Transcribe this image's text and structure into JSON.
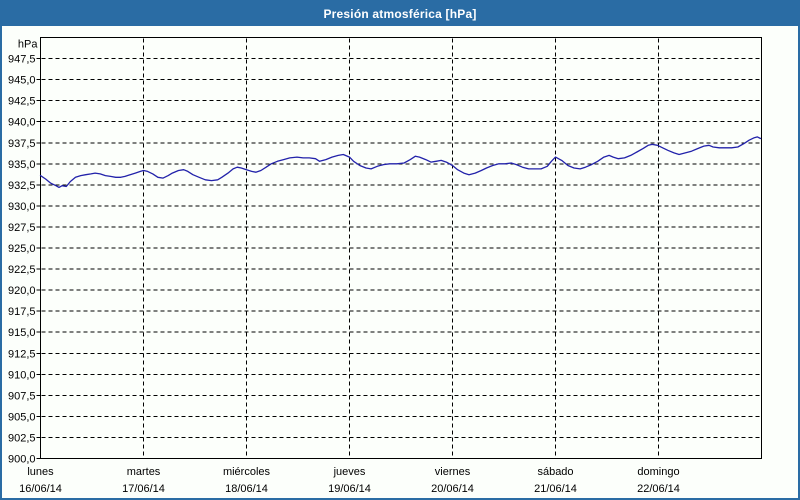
{
  "window": {
    "title": "Presión atmosférica [hPa]"
  },
  "colors": {
    "titlebar": "#2a6ca4",
    "window_border": "#2a6ca4",
    "background": "#fcfffb",
    "grid": "#000000",
    "axis": "#000000",
    "series_line": "#2222aa",
    "title_text": "#ffffff"
  },
  "chart_data": {
    "type": "line",
    "title": "Presión atmosférica [hPa]",
    "ylabel": "hPa",
    "legend_position": "none",
    "y_axis": {
      "min": 900,
      "max": 950,
      "tick_step": 2.5,
      "grid": "dashed",
      "tick_labels": [
        "947,5",
        "945,0",
        "942,5",
        "940,0",
        "937,5",
        "935,0",
        "932,5",
        "930,0",
        "927,5",
        "925,0",
        "922,5",
        "920,0",
        "917,5",
        "915,0",
        "912,5",
        "910,0",
        "907,5",
        "905,0",
        "902,5",
        "900,0"
      ]
    },
    "x_axis": {
      "span_days": 7,
      "grid": "dashed",
      "tick_labels": [
        {
          "day": "lunes",
          "date": "16/06/14"
        },
        {
          "day": "martes",
          "date": "17/06/14"
        },
        {
          "day": "miércoles",
          "date": "18/06/14"
        },
        {
          "day": "jueves",
          "date": "19/06/14"
        },
        {
          "day": "viernes",
          "date": "20/06/14"
        },
        {
          "day": "sábado",
          "date": "21/06/14"
        },
        {
          "day": "domingo",
          "date": "22/06/14"
        }
      ]
    },
    "series": [
      {
        "name": "Presión atmosférica",
        "unit": "hPa",
        "color": "#2222aa",
        "points": [
          [
            0.0,
            933.6
          ],
          [
            0.05,
            933.2
          ],
          [
            0.1,
            932.7
          ],
          [
            0.15,
            932.4
          ],
          [
            0.18,
            932.2
          ],
          [
            0.21,
            932.4
          ],
          [
            0.25,
            932.3
          ],
          [
            0.29,
            932.9
          ],
          [
            0.34,
            933.4
          ],
          [
            0.39,
            933.6
          ],
          [
            0.44,
            933.7
          ],
          [
            0.49,
            933.8
          ],
          [
            0.53,
            933.9
          ],
          [
            0.58,
            933.8
          ],
          [
            0.63,
            933.6
          ],
          [
            0.68,
            933.5
          ],
          [
            0.73,
            933.4
          ],
          [
            0.78,
            933.4
          ],
          [
            0.82,
            933.5
          ],
          [
            0.87,
            933.7
          ],
          [
            0.92,
            933.9
          ],
          [
            0.97,
            934.1
          ],
          [
            1.0,
            934.2
          ],
          [
            1.04,
            934.1
          ],
          [
            1.09,
            933.8
          ],
          [
            1.14,
            933.4
          ],
          [
            1.19,
            933.3
          ],
          [
            1.24,
            933.6
          ],
          [
            1.28,
            933.9
          ],
          [
            1.34,
            934.2
          ],
          [
            1.39,
            934.3
          ],
          [
            1.43,
            934.1
          ],
          [
            1.48,
            933.7
          ],
          [
            1.54,
            933.4
          ],
          [
            1.6,
            933.1
          ],
          [
            1.66,
            933.0
          ],
          [
            1.72,
            933.1
          ],
          [
            1.76,
            933.4
          ],
          [
            1.82,
            933.9
          ],
          [
            1.87,
            934.4
          ],
          [
            1.91,
            934.6
          ],
          [
            1.95,
            934.5
          ],
          [
            2.0,
            934.3
          ],
          [
            2.05,
            934.1
          ],
          [
            2.09,
            934.0
          ],
          [
            2.14,
            934.2
          ],
          [
            2.19,
            934.6
          ],
          [
            2.24,
            935.0
          ],
          [
            2.3,
            935.3
          ],
          [
            2.36,
            935.5
          ],
          [
            2.42,
            935.7
          ],
          [
            2.49,
            935.8
          ],
          [
            2.55,
            935.7
          ],
          [
            2.61,
            935.7
          ],
          [
            2.67,
            935.6
          ],
          [
            2.71,
            935.3
          ],
          [
            2.77,
            935.5
          ],
          [
            2.83,
            935.8
          ],
          [
            2.89,
            936.0
          ],
          [
            2.94,
            936.1
          ],
          [
            3.0,
            935.8
          ],
          [
            3.04,
            935.3
          ],
          [
            3.1,
            934.8
          ],
          [
            3.16,
            934.5
          ],
          [
            3.21,
            934.4
          ],
          [
            3.27,
            934.7
          ],
          [
            3.33,
            934.9
          ],
          [
            3.39,
            935.0
          ],
          [
            3.46,
            935.0
          ],
          [
            3.53,
            935.1
          ],
          [
            3.59,
            935.5
          ],
          [
            3.64,
            935.9
          ],
          [
            3.68,
            935.8
          ],
          [
            3.74,
            935.5
          ],
          [
            3.79,
            935.2
          ],
          [
            3.84,
            935.3
          ],
          [
            3.89,
            935.4
          ],
          [
            3.94,
            935.2
          ],
          [
            4.0,
            934.8
          ],
          [
            4.05,
            934.3
          ],
          [
            4.11,
            933.9
          ],
          [
            4.16,
            933.7
          ],
          [
            4.22,
            933.9
          ],
          [
            4.28,
            934.2
          ],
          [
            4.33,
            934.5
          ],
          [
            4.39,
            934.8
          ],
          [
            4.45,
            935.0
          ],
          [
            4.51,
            935.0
          ],
          [
            4.57,
            935.1
          ],
          [
            4.62,
            934.9
          ],
          [
            4.68,
            934.6
          ],
          [
            4.74,
            934.4
          ],
          [
            4.8,
            934.4
          ],
          [
            4.86,
            934.4
          ],
          [
            4.92,
            934.7
          ],
          [
            4.96,
            935.3
          ],
          [
            5.0,
            935.8
          ],
          [
            5.06,
            935.4
          ],
          [
            5.12,
            934.8
          ],
          [
            5.18,
            934.5
          ],
          [
            5.24,
            934.4
          ],
          [
            5.29,
            934.6
          ],
          [
            5.35,
            934.9
          ],
          [
            5.41,
            935.3
          ],
          [
            5.47,
            935.8
          ],
          [
            5.52,
            936.0
          ],
          [
            5.56,
            935.8
          ],
          [
            5.61,
            935.6
          ],
          [
            5.67,
            935.7
          ],
          [
            5.73,
            936.0
          ],
          [
            5.79,
            936.4
          ],
          [
            5.85,
            936.8
          ],
          [
            5.9,
            937.2
          ],
          [
            5.94,
            937.3
          ],
          [
            5.99,
            937.2
          ],
          [
            6.04,
            936.9
          ],
          [
            6.09,
            936.6
          ],
          [
            6.15,
            936.3
          ],
          [
            6.2,
            936.1
          ],
          [
            6.26,
            936.3
          ],
          [
            6.32,
            936.5
          ],
          [
            6.38,
            936.8
          ],
          [
            6.44,
            937.1
          ],
          [
            6.49,
            937.2
          ],
          [
            6.53,
            937.0
          ],
          [
            6.59,
            936.9
          ],
          [
            6.65,
            936.9
          ],
          [
            6.71,
            936.9
          ],
          [
            6.77,
            937.0
          ],
          [
            6.83,
            937.4
          ],
          [
            6.88,
            937.8
          ],
          [
            6.93,
            938.1
          ],
          [
            6.96,
            938.2
          ],
          [
            6.99,
            938.0
          ]
        ]
      }
    ]
  }
}
